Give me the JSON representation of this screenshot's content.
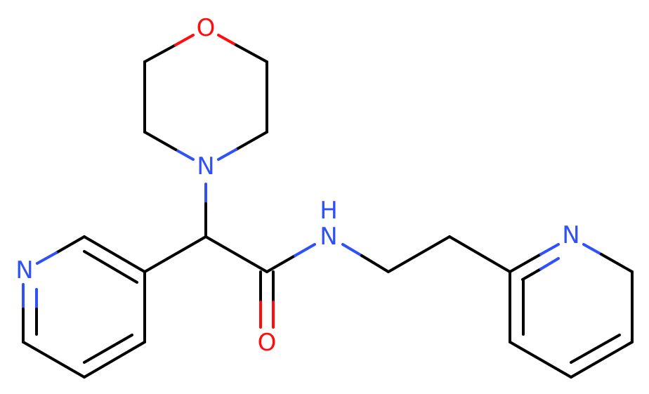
{
  "atoms": [
    {
      "label": "O"
    },
    {
      "label": "N"
    },
    {
      "label": "N"
    },
    {
      "label": "H"
    },
    {
      "label": "N"
    },
    {
      "label": "O"
    },
    {
      "label": "N"
    }
  ]
}
